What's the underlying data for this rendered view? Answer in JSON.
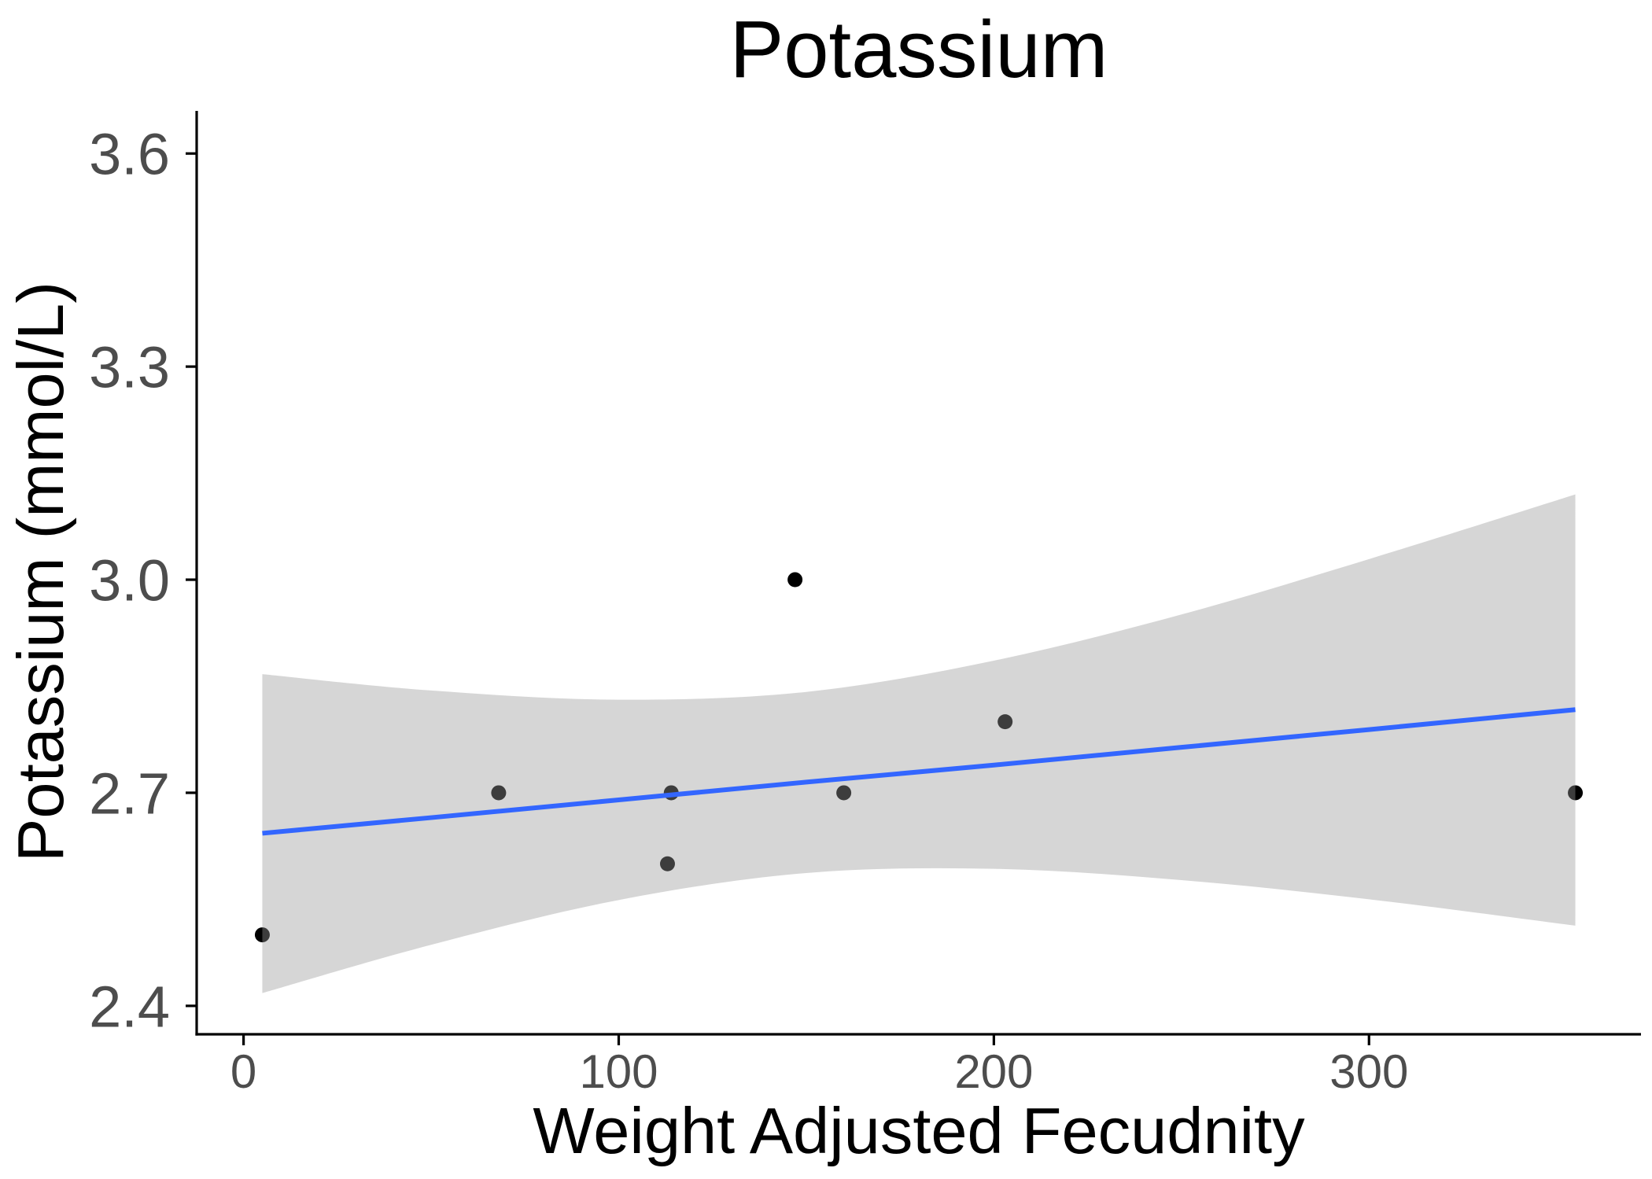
{
  "chart_data": {
    "type": "scatter",
    "title": "Potassium",
    "xlabel": "Weight Adjusted Fecudnity",
    "ylabel": "Potassium (mmol/L)",
    "xlim": [
      -12.5,
      372.5
    ],
    "ylim": [
      2.36,
      3.66
    ],
    "x_ticks": [
      0,
      100,
      200,
      300
    ],
    "x_tick_labels": [
      "0",
      "100",
      "200",
      "300"
    ],
    "y_ticks": [
      2.4,
      2.7,
      3.0,
      3.3,
      3.6
    ],
    "y_tick_labels": [
      "2.4",
      "2.7",
      "3.0",
      "3.3",
      "3.6"
    ],
    "grid": false,
    "points": {
      "x": [
        5,
        68,
        114,
        113,
        147,
        160,
        203,
        355
      ],
      "y": [
        2.5,
        2.7,
        2.7,
        2.6,
        3.0,
        2.7,
        2.8,
        2.7
      ]
    },
    "trend": {
      "x": [
        5,
        50,
        100,
        150,
        200,
        250,
        300,
        355
      ],
      "fit": [
        2.643,
        2.665,
        2.69,
        2.715,
        2.739,
        2.764,
        2.789,
        2.817
      ],
      "lower": [
        2.418,
        2.486,
        2.549,
        2.587,
        2.593,
        2.577,
        2.55,
        2.513
      ],
      "upper": [
        2.867,
        2.844,
        2.831,
        2.842,
        2.886,
        2.951,
        3.029,
        3.12
      ]
    },
    "colors": {
      "background": "#FFFFFF",
      "points": "#000000",
      "trend_line": "#3366FF",
      "band": "#999999",
      "axis": "#000000",
      "text": "#000000",
      "tick_labels": "#4D4D4D"
    }
  }
}
